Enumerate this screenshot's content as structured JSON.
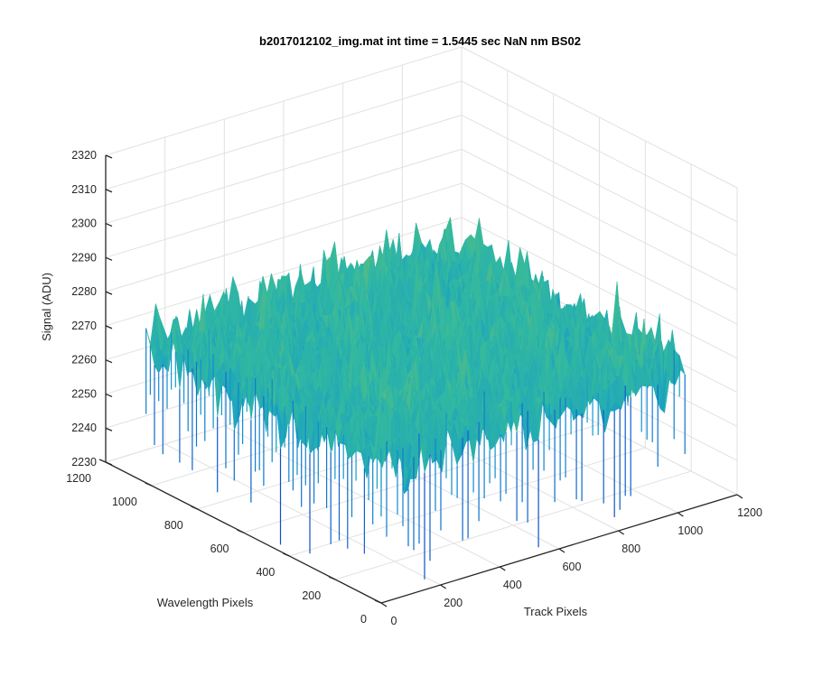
{
  "chart_data": {
    "type": "surface",
    "title": "b2017012102_img.mat int time = 1.5445 sec  NaN nm BS02",
    "xlabel": "Track Pixels",
    "ylabel": "Wavelength Pixels",
    "zlabel": "Signal (ADU)",
    "xlim": [
      0,
      1200
    ],
    "ylim": [
      0,
      1200
    ],
    "zlim": [
      2230,
      2320
    ],
    "xticks": [
      "0",
      "200",
      "400",
      "600",
      "800",
      "1000",
      "1200"
    ],
    "yticks": [
      "0",
      "200",
      "400",
      "600",
      "800",
      "1000",
      "1200"
    ],
    "zticks": [
      "2230",
      "2240",
      "2250",
      "2260",
      "2270",
      "2280",
      "2290",
      "2300",
      "2310",
      "2320"
    ],
    "xticks_values": [
      0,
      200,
      400,
      600,
      800,
      1000,
      1200
    ],
    "yticks_values": [
      0,
      200,
      400,
      600,
      800,
      1000,
      1200
    ],
    "zticks_values": [
      2230,
      2240,
      2250,
      2260,
      2270,
      2280,
      2290,
      2300,
      2310,
      2320
    ],
    "surface": {
      "x_extent": [
        0,
        1024
      ],
      "y_extent": [
        0,
        1024
      ],
      "mean": 2272,
      "noise_range": [
        2233,
        2310
      ],
      "colormap": "parula"
    },
    "grid": true,
    "view": "3-D, azimuth -37.5, elevation 30"
  },
  "colors": {
    "axis": "#262626",
    "grid": "#e1e1e1",
    "surface_low": "#0072bd",
    "surface_mid": "#3fb6a6",
    "surface_high": "#e0c43a"
  }
}
